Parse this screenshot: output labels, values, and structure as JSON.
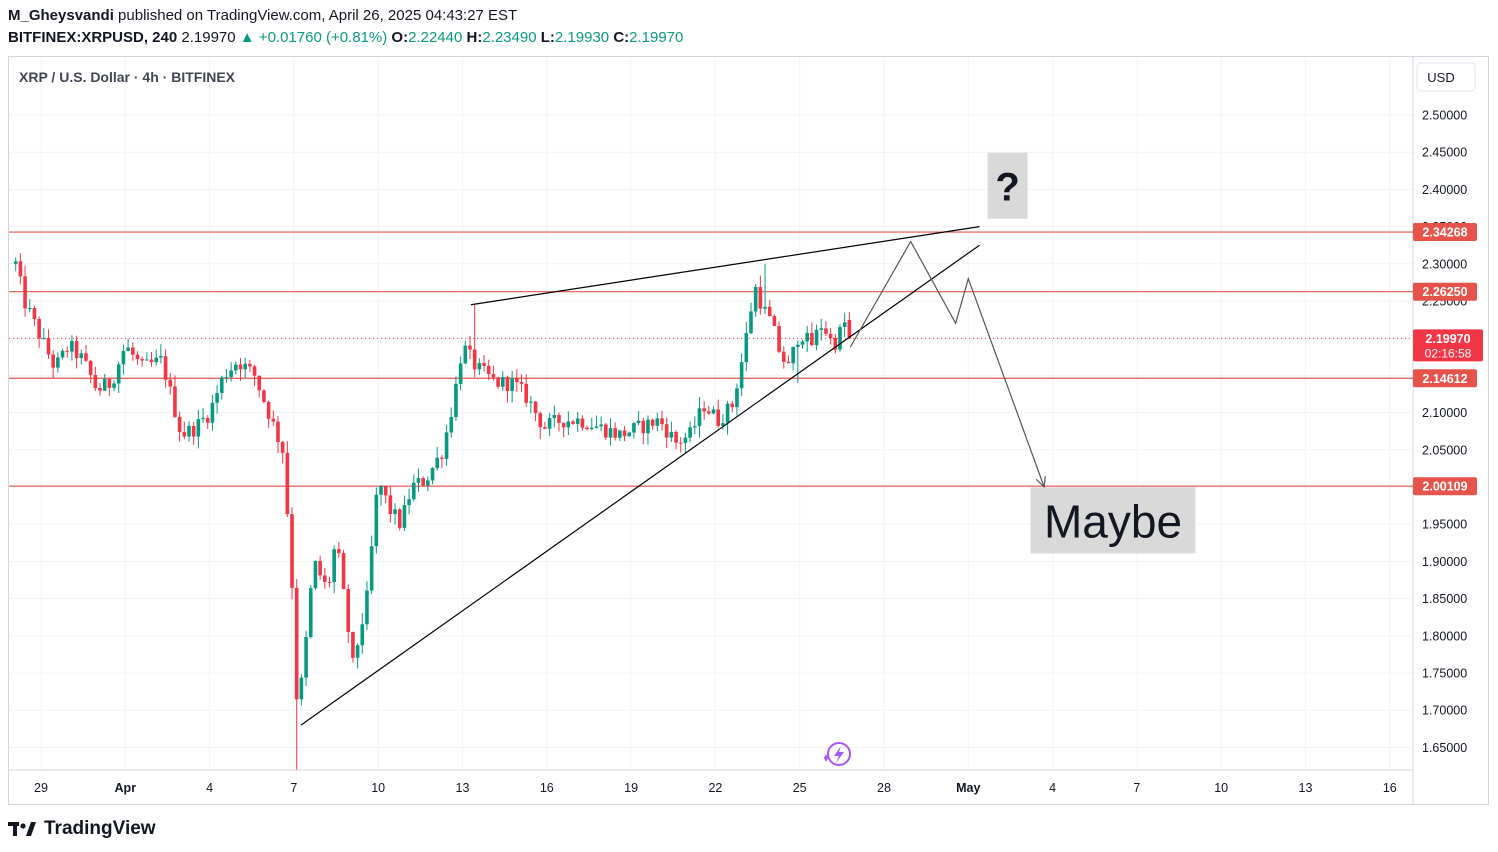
{
  "header": {
    "author": "M_Gheysvandi",
    "published_text": "published on TradingView.com, April 26, 2025 04:43:27 EST",
    "symbol": "BITFINEX:XRPUSD, 240",
    "last": "2.19970",
    "change": "▲ +0.01760 (+0.81%)",
    "o_label": "O:",
    "o": "2.22440",
    "h_label": "H:",
    "h": "2.23490",
    "l_label": "L:",
    "l": "2.19930",
    "c_label": "C:",
    "c": "2.19970"
  },
  "chart_title": "XRP / U.S. Dollar · 4h · BITFINEX",
  "currency": "USD",
  "footer": {
    "brand": "TradingView"
  },
  "colors": {
    "up": "#089981",
    "down": "#f23645",
    "line": "#000000",
    "level": "#e5534b",
    "accent": "#a855f7"
  },
  "chart_data": {
    "type": "candlestick",
    "ylim": [
      1.62,
      2.54
    ],
    "y_ticks": [
      "2.50000",
      "2.45000",
      "2.40000",
      "2.35000",
      "2.30000",
      "2.25000",
      "2.20000",
      "2.15000",
      "2.10000",
      "2.05000",
      "2.00000",
      "1.95000",
      "1.90000",
      "1.85000",
      "1.80000",
      "1.75000",
      "1.70000",
      "1.65000"
    ],
    "x_ticks": [
      {
        "label": "29",
        "d": 0
      },
      {
        "label": "Apr",
        "d": 3
      },
      {
        "label": "4",
        "d": 6
      },
      {
        "label": "7",
        "d": 9
      },
      {
        "label": "10",
        "d": 12
      },
      {
        "label": "13",
        "d": 15
      },
      {
        "label": "16",
        "d": 18
      },
      {
        "label": "19",
        "d": 21
      },
      {
        "label": "22",
        "d": 24
      },
      {
        "label": "25",
        "d": 27
      },
      {
        "label": "28",
        "d": 30
      },
      {
        "label": "May",
        "d": 33
      },
      {
        "label": "4",
        "d": 36
      },
      {
        "label": "7",
        "d": 39
      },
      {
        "label": "10",
        "d": 42
      },
      {
        "label": "13",
        "d": 45
      },
      {
        "label": "16",
        "d": 48
      }
    ],
    "levels": [
      {
        "price": 2.34268,
        "label": "2.34268"
      },
      {
        "price": 2.2625,
        "label": "2.26250"
      },
      {
        "price": 2.14612,
        "label": "2.14612"
      },
      {
        "price": 2.00109,
        "label": "2.00109"
      }
    ],
    "last_price": {
      "price": 2.1997,
      "label": "2.19970",
      "countdown": "02:16:58"
    },
    "anchors": [
      {
        "d": -0.9,
        "p": 2.3
      },
      {
        "d": -0.6,
        "p": 2.25
      },
      {
        "d": 0.0,
        "p": 2.2
      },
      {
        "d": 0.5,
        "p": 2.16
      },
      {
        "d": 1.0,
        "p": 2.19
      },
      {
        "d": 1.5,
        "p": 2.17
      },
      {
        "d": 2.0,
        "p": 2.13
      },
      {
        "d": 2.5,
        "p": 2.14
      },
      {
        "d": 3.0,
        "p": 2.19
      },
      {
        "d": 3.6,
        "p": 2.16
      },
      {
        "d": 4.3,
        "p": 2.17
      },
      {
        "d": 5.0,
        "p": 2.07
      },
      {
        "d": 5.5,
        "p": 2.08
      },
      {
        "d": 6.0,
        "p": 2.1
      },
      {
        "d": 6.5,
        "p": 2.15
      },
      {
        "d": 7.0,
        "p": 2.17
      },
      {
        "d": 7.6,
        "p": 2.15
      },
      {
        "d": 8.1,
        "p": 2.1
      },
      {
        "d": 8.6,
        "p": 2.05
      },
      {
        "d": 8.9,
        "p": 1.9
      },
      {
        "d": 9.1,
        "p": 1.72
      },
      {
        "d": 9.3,
        "p": 1.74
      },
      {
        "d": 9.7,
        "p": 1.9
      },
      {
        "d": 10.2,
        "p": 1.86
      },
      {
        "d": 10.5,
        "p": 1.93
      },
      {
        "d": 11.1,
        "p": 1.76
      },
      {
        "d": 11.6,
        "p": 1.85
      },
      {
        "d": 12.0,
        "p": 2.01
      },
      {
        "d": 12.4,
        "p": 1.97
      },
      {
        "d": 12.8,
        "p": 1.95
      },
      {
        "d": 13.2,
        "p": 2.0
      },
      {
        "d": 13.7,
        "p": 2.01
      },
      {
        "d": 14.3,
        "p": 2.05
      },
      {
        "d": 14.7,
        "p": 2.12
      },
      {
        "d": 15.0,
        "p": 2.19
      },
      {
        "d": 15.5,
        "p": 2.16
      },
      {
        "d": 16.2,
        "p": 2.14
      },
      {
        "d": 16.8,
        "p": 2.14
      },
      {
        "d": 17.3,
        "p": 2.12
      },
      {
        "d": 17.9,
        "p": 2.08
      },
      {
        "d": 18.5,
        "p": 2.09
      },
      {
        "d": 19.2,
        "p": 2.09
      },
      {
        "d": 19.9,
        "p": 2.08
      },
      {
        "d": 20.6,
        "p": 2.07
      },
      {
        "d": 21.3,
        "p": 2.08
      },
      {
        "d": 22.0,
        "p": 2.09
      },
      {
        "d": 22.6,
        "p": 2.06
      },
      {
        "d": 23.1,
        "p": 2.07
      },
      {
        "d": 23.6,
        "p": 2.11
      },
      {
        "d": 24.1,
        "p": 2.09
      },
      {
        "d": 24.6,
        "p": 2.11
      },
      {
        "d": 25.0,
        "p": 2.18
      },
      {
        "d": 25.4,
        "p": 2.27
      },
      {
        "d": 25.7,
        "p": 2.24
      },
      {
        "d": 26.0,
        "p": 2.22
      },
      {
        "d": 26.3,
        "p": 2.18
      },
      {
        "d": 26.6,
        "p": 2.16
      },
      {
        "d": 27.0,
        "p": 2.21
      },
      {
        "d": 27.4,
        "p": 2.19
      },
      {
        "d": 27.8,
        "p": 2.22
      },
      {
        "d": 28.2,
        "p": 2.19
      },
      {
        "d": 28.6,
        "p": 2.22
      },
      {
        "d": 28.8,
        "p": 2.2
      }
    ],
    "spikes": [
      {
        "d": 9.05,
        "low": 1.62
      },
      {
        "d": 15.35,
        "high": 2.245
      },
      {
        "d": 25.8,
        "high": 2.3
      },
      {
        "d": 26.9,
        "low": 2.14
      }
    ],
    "trendlines": [
      {
        "d1": 15.3,
        "p1": 2.245,
        "d2": 33.4,
        "p2": 2.35
      },
      {
        "d1": 9.25,
        "p1": 1.68,
        "d2": 33.4,
        "p2": 2.325
      }
    ],
    "projection": [
      {
        "d": 28.8,
        "p": 2.188
      },
      {
        "d": 30.95,
        "p": 2.33
      },
      {
        "d": 32.55,
        "p": 2.22
      },
      {
        "d": 33.0,
        "p": 2.28
      },
      {
        "d": 35.7,
        "p": 2.0
      }
    ],
    "annotations": [
      {
        "text": "?",
        "d": 34.4,
        "p": 2.405
      },
      {
        "text": "Maybe",
        "d": 38.15,
        "p": 1.955
      }
    ]
  }
}
